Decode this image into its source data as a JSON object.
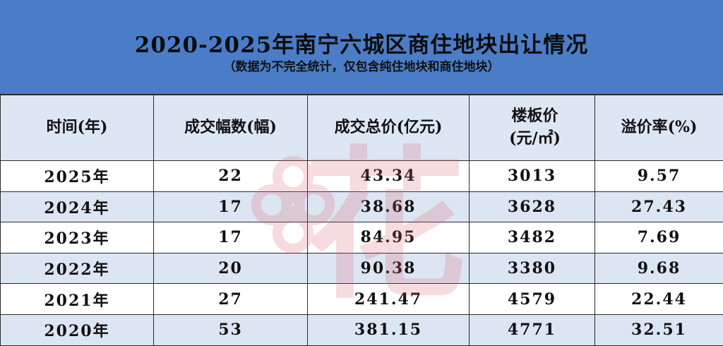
{
  "header": {
    "title": "2020-2025年南宁六城区商住地块出让情况",
    "subtitle": "（数据为不完全统计，仅包含纯住地块和商住地块）"
  },
  "table": {
    "columns": [
      "时间(年)",
      "成交幅数(幅)",
      "成交总价(亿元)",
      "楼板价(元/㎡)",
      "溢价率(%)"
    ],
    "rows": [
      [
        "2025年",
        "22",
        "43.34",
        "3013",
        "9.57"
      ],
      [
        "2024年",
        "17",
        "38.68",
        "3628",
        "27.43"
      ],
      [
        "2023年",
        "17",
        "84.95",
        "3482",
        "7.69"
      ],
      [
        "2022年",
        "20",
        "90.38",
        "3380",
        "9.68"
      ],
      [
        "2021年",
        "27",
        "241.47",
        "4579",
        "22.44"
      ],
      [
        "2020年",
        "53",
        "381.15",
        "4771",
        "32.51"
      ]
    ]
  },
  "colors": {
    "header_bg": "#4a7cc7",
    "column_header_bg": "#dde6f3",
    "row_alt_bg": "#dce5f2",
    "watermark": "#e6a3a8"
  },
  "watermark": {
    "icon": "flower-logo-icon",
    "text": "花"
  }
}
